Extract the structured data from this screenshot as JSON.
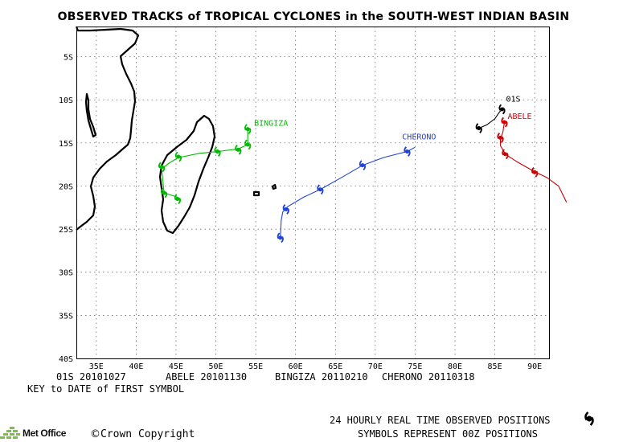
{
  "title": "OBSERVED TRACKS of TROPICAL CYCLONES in the SOUTH-WEST INDIAN BASIN",
  "lat_labels": [
    "5S",
    "10S",
    "15S",
    "20S",
    "25S",
    "30S",
    "35S",
    "40S"
  ],
  "lon_labels": [
    "35E",
    "40E",
    "45E",
    "50E",
    "55E",
    "60E",
    "65E",
    "70E",
    "75E",
    "80E",
    "85E",
    "90E"
  ],
  "storms": [
    {
      "name": "01S",
      "color": "#000000",
      "track": [
        [
          83,
          -13.3
        ],
        [
          84,
          -12.9
        ],
        [
          85,
          -12.2
        ],
        [
          85.6,
          -11.4
        ],
        [
          86.1,
          -10.9
        ]
      ],
      "symbols": [
        [
          83,
          -13.3
        ],
        [
          85.9,
          -11.1
        ]
      ]
    },
    {
      "name": "ABELE",
      "color": "#cc0000",
      "track": [
        [
          86.2,
          -12.6
        ],
        [
          86.0,
          -13.8
        ],
        [
          85.7,
          -14.5
        ],
        [
          85.7,
          -15.3
        ],
        [
          86.3,
          -16.3
        ],
        [
          87.8,
          -17.2
        ],
        [
          89.9,
          -18.3
        ],
        [
          91.5,
          -19.0
        ],
        [
          93.0,
          -20.0
        ],
        [
          94.0,
          -21.9
        ]
      ],
      "symbols": [
        [
          86.2,
          -12.6
        ],
        [
          85.7,
          -14.4
        ],
        [
          86.3,
          -16.3
        ],
        [
          90.0,
          -18.4
        ]
      ]
    },
    {
      "name": "BINGIZA",
      "color": "#00bb00",
      "track": [
        [
          54.0,
          -13.4
        ],
        [
          54.0,
          -15.2
        ],
        [
          52.8,
          -15.7
        ],
        [
          50.3,
          -16.0
        ],
        [
          48.0,
          -16.2
        ],
        [
          45.3,
          -16.7
        ],
        [
          44.2,
          -17.3
        ],
        [
          43.2,
          -18.0
        ],
        [
          43.5,
          -20.8
        ],
        [
          45.2,
          -21.3
        ]
      ],
      "symbols": [
        [
          54.0,
          -13.4
        ],
        [
          54.0,
          -15.2
        ],
        [
          52.8,
          -15.8
        ],
        [
          50.2,
          -16.0
        ],
        [
          45.3,
          -16.6
        ],
        [
          43.2,
          -17.8
        ],
        [
          43.5,
          -20.8
        ],
        [
          45.2,
          -21.5
        ]
      ]
    },
    {
      "name": "CHERONO",
      "color": "#1f44d8",
      "track": [
        [
          75.0,
          -15.5
        ],
        [
          74.0,
          -16.0
        ],
        [
          71.0,
          -16.7
        ],
        [
          68.4,
          -17.6
        ],
        [
          65.8,
          -19.0
        ],
        [
          63.1,
          -20.4
        ],
        [
          61.0,
          -21.3
        ],
        [
          59.0,
          -22.4
        ],
        [
          58.4,
          -23.0
        ],
        [
          58.2,
          -24.0
        ],
        [
          58.1,
          -26.0
        ]
      ],
      "symbols": [
        [
          74.0,
          -16.0
        ],
        [
          68.4,
          -17.6
        ],
        [
          63.1,
          -20.4
        ],
        [
          58.8,
          -22.7
        ],
        [
          58.1,
          -26.0
        ]
      ]
    }
  ],
  "key": {
    "entries": [
      {
        "name": "01S",
        "date": "20101027"
      },
      {
        "name": "ABELE",
        "date": "20101130"
      },
      {
        "name": "BINGIZA",
        "date": "20110210"
      },
      {
        "name": "CHERONO",
        "date": "20110318"
      }
    ],
    "caption": "KEY to DATE of FIRST SYMBOL"
  },
  "legend": {
    "line1": "24 HOURLY REAL TIME OBSERVED POSITIONS",
    "line2": "SYMBOLS REPRESENT 00Z POSITIONS"
  },
  "footer": {
    "logo": "Met Office",
    "copyright": "Crown Copyright",
    "copyright_symbol": "©"
  },
  "colors": {
    "frame": "#000000",
    "grid": "#555555",
    "land": "#000000",
    "logo": "#7ac143"
  }
}
